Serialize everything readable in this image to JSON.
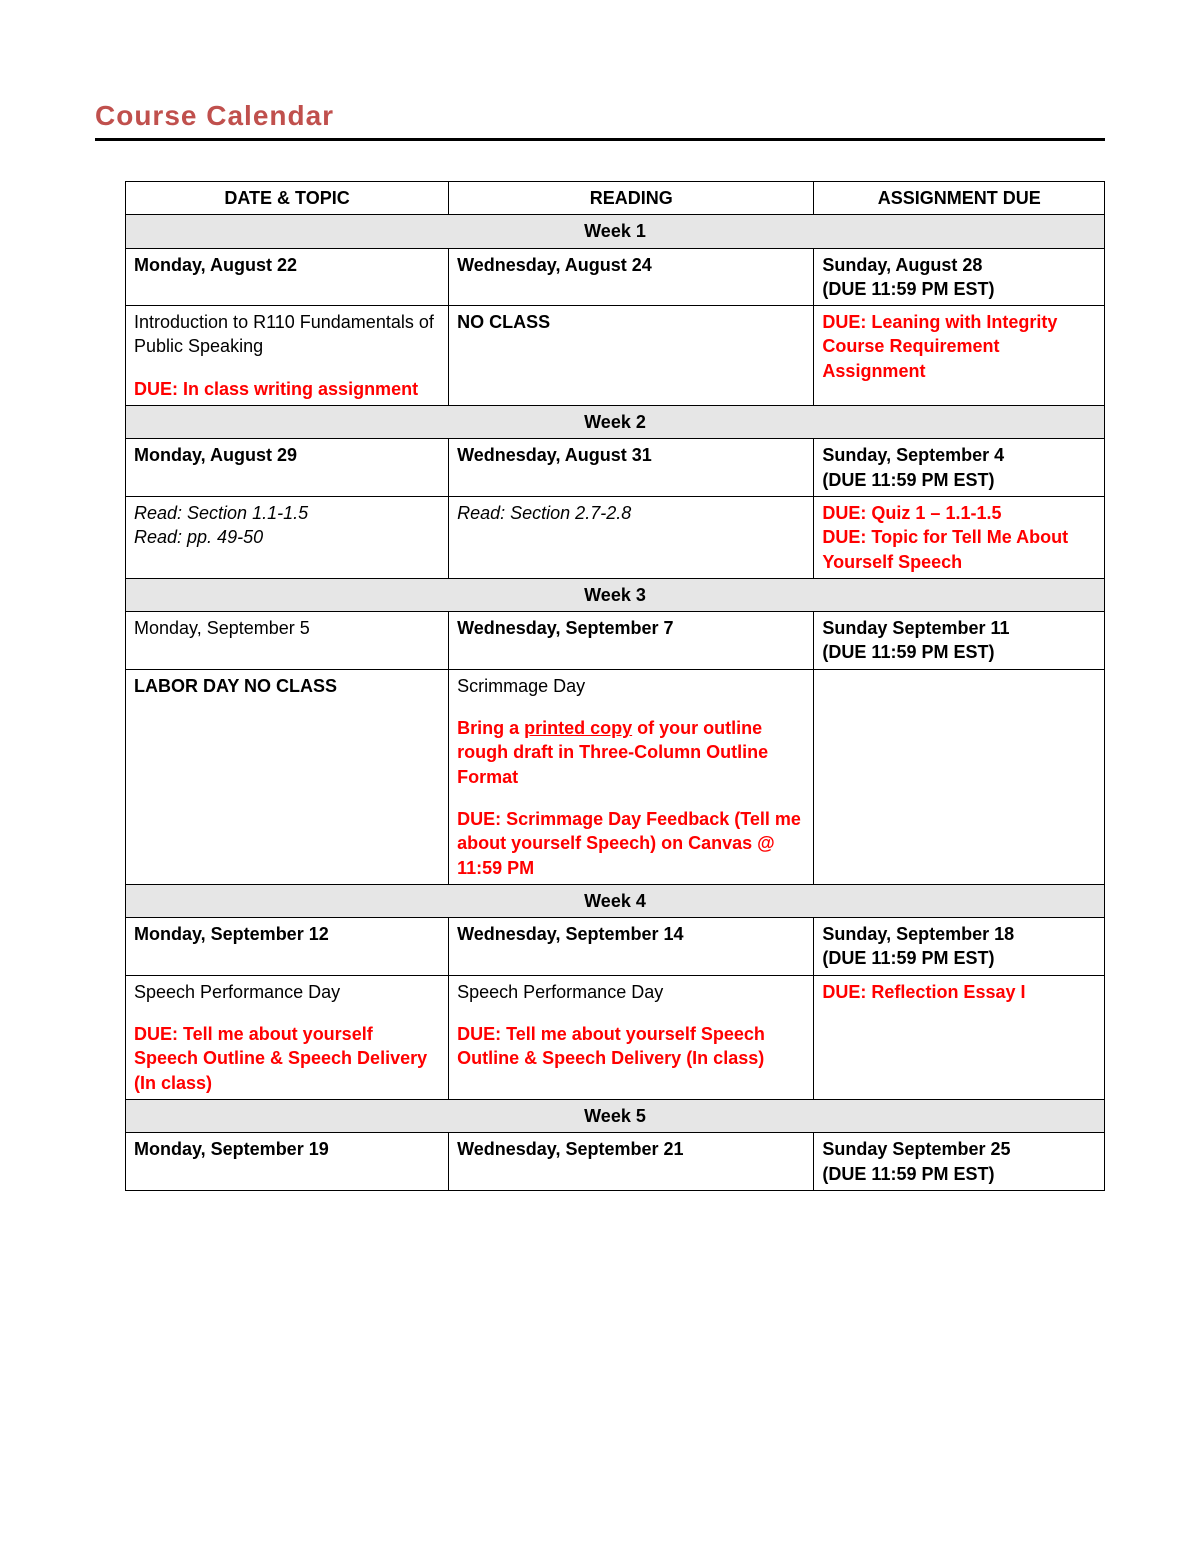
{
  "title": "Course Calendar",
  "columns": [
    "DATE & TOPIC",
    "READING",
    "ASSIGNMENT DUE"
  ],
  "accent_color": "#c0504d",
  "red_color": "#ff0000",
  "week_bg": "#e6e6e6",
  "border_color": "#000000",
  "font_size_pt": 18,
  "weeks": [
    {
      "label": "Week 1",
      "dates": {
        "col1": "Monday, August 22",
        "col2": "Wednesday, August 24",
        "col3_line1": "Sunday, August 28",
        "col3_line2": "(DUE 11:59 PM EST)"
      },
      "content": {
        "col1_text": "Introduction to R110 Fundamentals of Public Speaking",
        "col1_red": "DUE: In class writing assignment",
        "col2_bold": "NO CLASS",
        "col3_red": "DUE: Leaning with Integrity Course Requirement Assignment"
      }
    },
    {
      "label": "Week 2",
      "dates": {
        "col1": "Monday, August 29",
        "col2": "Wednesday, August 31",
        "col3_line1": "Sunday, September 4",
        "col3_line2": "(DUE 11:59 PM EST)"
      },
      "content": {
        "col1_italic1": "Read: Section 1.1-1.5",
        "col1_italic2": "Read: pp. 49-50",
        "col2_italic": "Read: Section 2.7-2.8",
        "col3_red1": "DUE: Quiz 1 – 1.1-1.5",
        "col3_red2": "DUE: Topic for Tell Me About Yourself Speech"
      }
    },
    {
      "label": "Week 3",
      "dates": {
        "col1": "Monday, September 5",
        "col1_plain": true,
        "col2": "Wednesday, September 7",
        "col3_line1": "Sunday September 11",
        "col3_line2": "(DUE 11:59 PM EST)"
      },
      "content": {
        "col1_bold": "LABOR DAY NO CLASS",
        "col2_text": "Scrimmage Day",
        "col2_red_pre": "Bring a ",
        "col2_red_underline": "printed copy",
        "col2_red_post": " of your outline rough draft in Three-Column Outline Format",
        "col2_red2": "DUE: Scrimmage Day Feedback (Tell me about yourself Speech) on Canvas @ 11:59 PM"
      }
    },
    {
      "label": "Week 4",
      "dates": {
        "col1": "Monday, September 12",
        "col2": "Wednesday, September 14",
        "col3_line1": "Sunday, September 18",
        "col3_line2": "(DUE 11:59 PM EST)"
      },
      "content": {
        "col1_text": "Speech Performance Day",
        "col1_red": "DUE: Tell me about yourself Speech Outline & Speech Delivery (In class)",
        "col2_text": "Speech Performance Day",
        "col2_red": "DUE: Tell me about yourself Speech Outline & Speech Delivery (In class)",
        "col3_red": "DUE: Reflection Essay I"
      }
    },
    {
      "label": "Week 5",
      "dates": {
        "col1": "Monday, September 19",
        "col2": "Wednesday, September 21",
        "col3_line1": "Sunday September 25",
        "col3_line2": "(DUE 11:59 PM EST)"
      }
    }
  ]
}
